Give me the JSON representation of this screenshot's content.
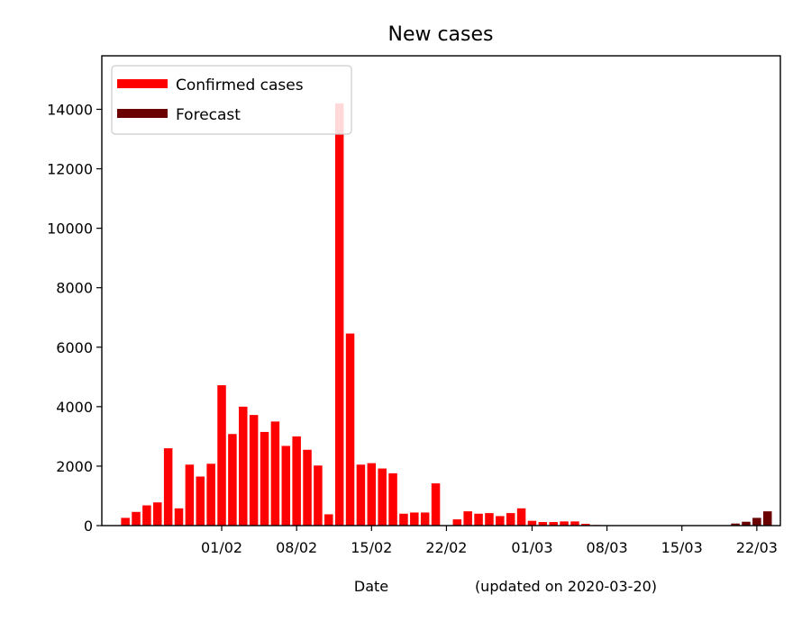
{
  "chart_data": {
    "type": "bar",
    "title": "New cases",
    "xlabel": "Date",
    "xlabel_note": "(updated on 2020-03-20)",
    "ylabel": "",
    "ylim": [
      0,
      15800
    ],
    "yticks": [
      0,
      2000,
      4000,
      6000,
      8000,
      10000,
      12000,
      14000
    ],
    "x_start": "2020-01-22",
    "xticks": [
      {
        "label": "01/02",
        "date": "2020-02-01"
      },
      {
        "label": "08/02",
        "date": "2020-02-08"
      },
      {
        "label": "15/02",
        "date": "2020-02-15"
      },
      {
        "label": "22/02",
        "date": "2020-02-22"
      },
      {
        "label": "01/03",
        "date": "2020-03-01"
      },
      {
        "label": "08/03",
        "date": "2020-03-08"
      },
      {
        "label": "15/03",
        "date": "2020-03-15"
      },
      {
        "label": "22/03",
        "date": "2020-03-22"
      }
    ],
    "legend": "top-left",
    "grid": false,
    "series": [
      {
        "name": "Confirmed cases",
        "color": "#ff0000",
        "values": [
          0,
          260,
          460,
          680,
          780,
          2600,
          580,
          2050,
          1650,
          2080,
          4720,
          3080,
          4000,
          3720,
          3150,
          3500,
          2680,
          3000,
          2550,
          2020,
          380,
          14200,
          6460,
          2050,
          2100,
          1920,
          1760,
          400,
          440,
          440,
          1420,
          0,
          210,
          480,
          400,
          420,
          320,
          420,
          580,
          160,
          120,
          120,
          140,
          140,
          60,
          20,
          10,
          0,
          0,
          0,
          0,
          0,
          0,
          0,
          0,
          0,
          0,
          0
        ]
      },
      {
        "name": "Forecast",
        "color": "#6b0000",
        "values": [
          0,
          0,
          0,
          0,
          0,
          0,
          0,
          0,
          0,
          0,
          0,
          0,
          0,
          0,
          0,
          0,
          0,
          0,
          0,
          0,
          0,
          0,
          0,
          0,
          0,
          0,
          0,
          0,
          0,
          0,
          0,
          0,
          0,
          0,
          0,
          0,
          0,
          0,
          0,
          0,
          0,
          0,
          0,
          0,
          0,
          0,
          0,
          0,
          0,
          0,
          0,
          0,
          0,
          0,
          0,
          0,
          0,
          0,
          70,
          130,
          260,
          480
        ]
      }
    ]
  }
}
